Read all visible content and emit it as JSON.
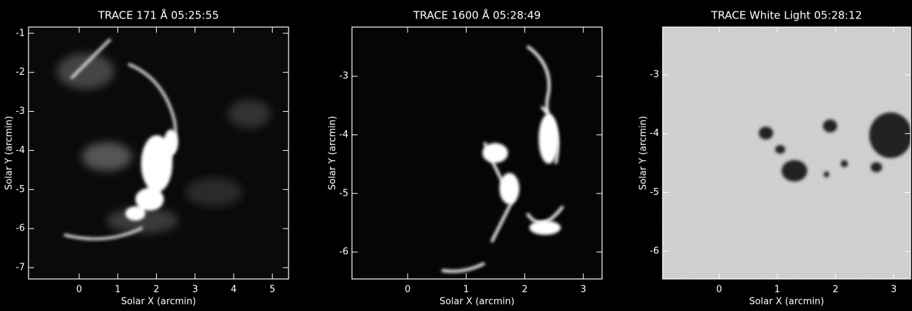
{
  "chart_data": [
    {
      "type": "image",
      "title": "TRACE 171 Å 05:25:55",
      "xlabel": "Solar X (arcmin)",
      "ylabel": "Solar Y (arcmin)",
      "xlim": [
        -1.31,
        5.42
      ],
      "ylim": [
        -7.29,
        -0.84
      ],
      "xticks": [
        0,
        1,
        2,
        3,
        4,
        5
      ],
      "yticks": [
        -7,
        -6,
        -5,
        -4,
        -3,
        -2,
        -1
      ]
    },
    {
      "type": "image",
      "title": "TRACE 1600 Å 05:28:49",
      "xlabel": "Solar X (arcmin)",
      "ylabel": "Solar Y (arcmin)",
      "xlim": [
        -0.95,
        3.32
      ],
      "ylim": [
        -6.46,
        -2.16
      ],
      "xticks": [
        0,
        1,
        2,
        3
      ],
      "yticks": [
        -6,
        -5,
        -4,
        -3
      ]
    },
    {
      "type": "image",
      "title": "TRACE White Light 05:28:12",
      "xlabel": "Solar X (arcmin)",
      "ylabel": "Solar Y (arcmin)",
      "xlim": [
        -0.97,
        3.29
      ],
      "ylim": [
        -6.47,
        -2.19
      ],
      "xticks": [
        0,
        1,
        2,
        3
      ],
      "yticks": [
        -6,
        -5,
        -4,
        -3
      ]
    }
  ]
}
